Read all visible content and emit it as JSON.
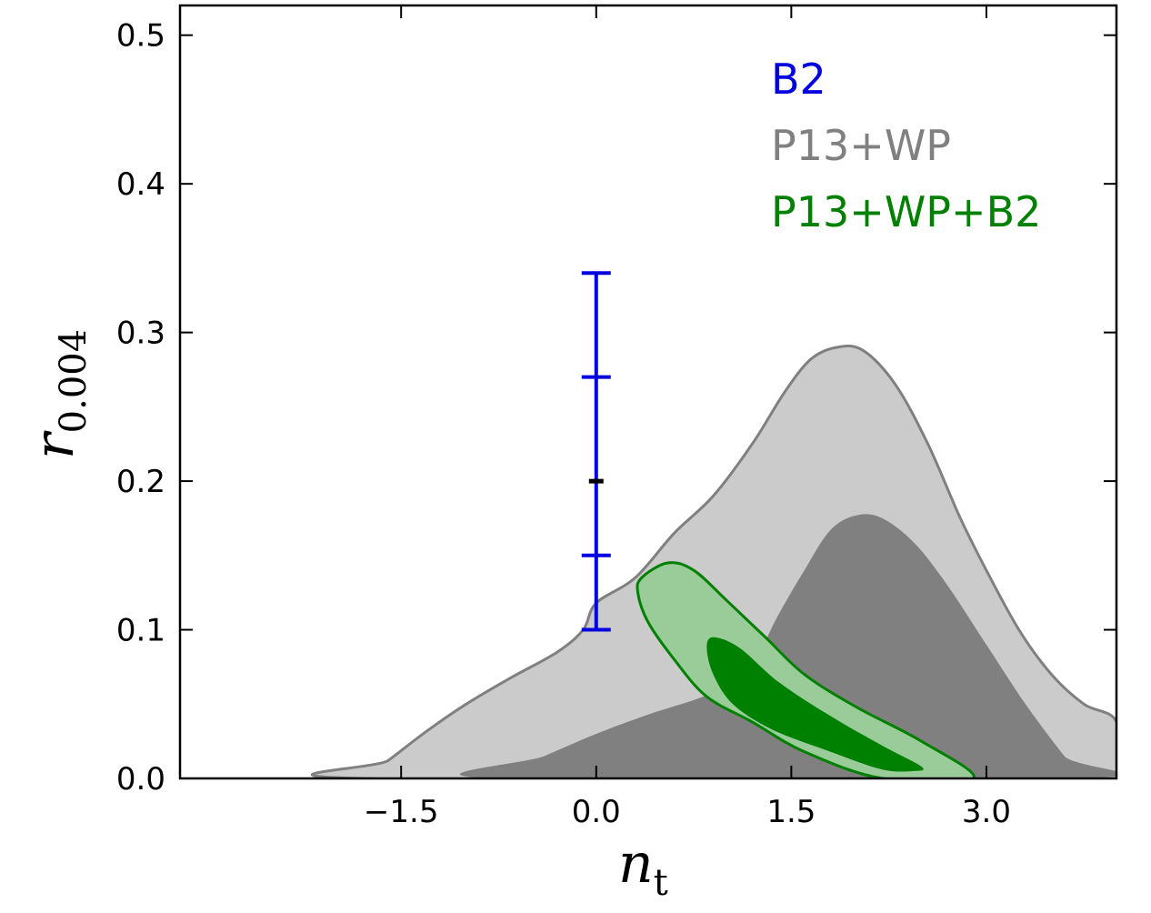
{
  "chart_data": {
    "type": "contour",
    "xlabel": "n",
    "xlabel_sub": "t",
    "ylabel": "r",
    "ylabel_sub": "0.004",
    "xlim": [
      -3.2,
      4.0
    ],
    "ylim": [
      0.0,
      0.52
    ],
    "xticks": [
      -1.5,
      0.0,
      1.5,
      3.0
    ],
    "xtick_labels": [
      "−1.5",
      "0.0",
      "1.5",
      "3.0"
    ],
    "yticks": [
      0.0,
      0.1,
      0.2,
      0.3,
      0.4,
      0.5
    ],
    "ytick_labels": [
      "0.0",
      "0.1",
      "0.2",
      "0.3",
      "0.4",
      "0.5"
    ],
    "legend_position": "top-right",
    "legend": [
      {
        "label": "B2",
        "color": "#0000e0"
      },
      {
        "label": "P13+WP",
        "color": "#808080"
      },
      {
        "label": "P13+WP+B2",
        "color": "#008000"
      }
    ],
    "series": [
      {
        "name": "P13+WP 95%",
        "kind": "region",
        "fill": "#cbcbcb",
        "stroke": "#808080",
        "points": [
          [
            -1.8,
            0.0
          ],
          [
            -1.6,
            0.012
          ],
          [
            -1.3,
            0.032
          ],
          [
            -1.0,
            0.05
          ],
          [
            -0.65,
            0.068
          ],
          [
            -0.3,
            0.085
          ],
          [
            -0.1,
            0.1
          ],
          [
            0.0,
            0.118
          ],
          [
            0.3,
            0.135
          ],
          [
            0.6,
            0.165
          ],
          [
            0.9,
            0.19
          ],
          [
            1.2,
            0.225
          ],
          [
            1.45,
            0.26
          ],
          [
            1.65,
            0.282
          ],
          [
            1.85,
            0.29
          ],
          [
            2.05,
            0.288
          ],
          [
            2.3,
            0.265
          ],
          [
            2.55,
            0.225
          ],
          [
            2.8,
            0.175
          ],
          [
            3.0,
            0.14
          ],
          [
            3.25,
            0.1
          ],
          [
            3.5,
            0.07
          ],
          [
            3.75,
            0.05
          ],
          [
            4.0,
            0.038
          ],
          [
            4.0,
            0.0
          ]
        ]
      },
      {
        "name": "P13+WP 68%",
        "kind": "region",
        "fill": "#808080",
        "stroke": "none",
        "points": [
          [
            -0.8,
            0.0
          ],
          [
            -0.4,
            0.015
          ],
          [
            0.0,
            0.03
          ],
          [
            0.4,
            0.043
          ],
          [
            0.9,
            0.058
          ],
          [
            1.2,
            0.078
          ],
          [
            1.4,
            0.11
          ],
          [
            1.6,
            0.14
          ],
          [
            1.8,
            0.167
          ],
          [
            2.0,
            0.177
          ],
          [
            2.2,
            0.175
          ],
          [
            2.45,
            0.158
          ],
          [
            2.7,
            0.13
          ],
          [
            3.0,
            0.09
          ],
          [
            3.3,
            0.05
          ],
          [
            3.6,
            0.015
          ],
          [
            3.75,
            0.0
          ]
        ]
      },
      {
        "name": "P13+WP+B2 95%",
        "kind": "region",
        "fill": "#99cc99",
        "stroke": "#008000",
        "points": [
          [
            0.35,
            0.135
          ],
          [
            0.55,
            0.145
          ],
          [
            0.75,
            0.14
          ],
          [
            1.0,
            0.12
          ],
          [
            1.3,
            0.095
          ],
          [
            1.6,
            0.07
          ],
          [
            2.0,
            0.048
          ],
          [
            2.5,
            0.025
          ],
          [
            2.9,
            0.0
          ],
          [
            2.2,
            0.0
          ],
          [
            1.6,
            0.018
          ],
          [
            1.2,
            0.038
          ],
          [
            0.85,
            0.055
          ],
          [
            0.6,
            0.08
          ],
          [
            0.4,
            0.105
          ],
          [
            0.32,
            0.125
          ]
        ]
      },
      {
        "name": "P13+WP+B2 68%",
        "kind": "region",
        "fill": "#008000",
        "stroke": "none",
        "points": [
          [
            0.9,
            0.095
          ],
          [
            1.1,
            0.088
          ],
          [
            1.4,
            0.065
          ],
          [
            1.8,
            0.042
          ],
          [
            2.2,
            0.022
          ],
          [
            2.5,
            0.008
          ],
          [
            2.45,
            0.005
          ],
          [
            2.2,
            0.006
          ],
          [
            1.8,
            0.018
          ],
          [
            1.35,
            0.033
          ],
          [
            1.05,
            0.05
          ],
          [
            0.9,
            0.07
          ],
          [
            0.85,
            0.088
          ]
        ]
      },
      {
        "name": "B2",
        "kind": "errorbar",
        "color": "#0000e0",
        "x": 0.0,
        "y": 0.2,
        "inner": [
          0.15,
          0.27
        ],
        "outer": [
          0.1,
          0.34
        ]
      }
    ]
  }
}
